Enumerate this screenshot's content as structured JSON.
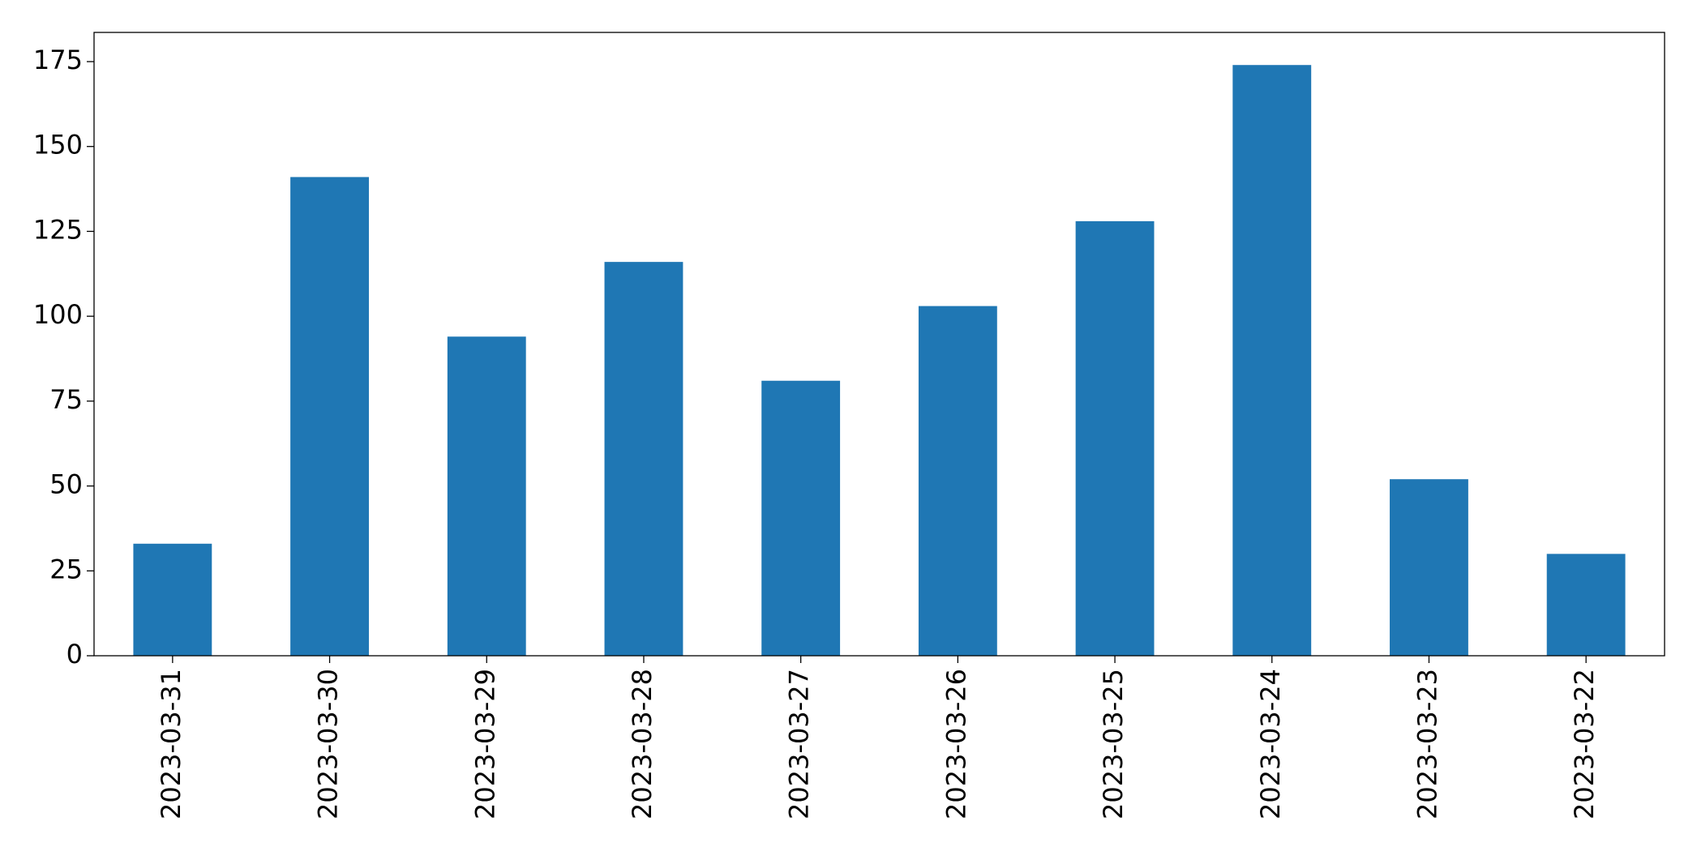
{
  "chart_data": {
    "type": "bar",
    "categories": [
      "2023-03-31",
      "2023-03-30",
      "2023-03-29",
      "2023-03-28",
      "2023-03-27",
      "2023-03-26",
      "2023-03-25",
      "2023-03-24",
      "2023-03-23",
      "2023-03-22"
    ],
    "values": [
      33,
      141,
      94,
      116,
      81,
      103,
      128,
      174,
      52,
      30
    ],
    "color": "#1f77b4",
    "ylim": [
      0,
      183.6
    ],
    "yticks": [
      0,
      25,
      50,
      75,
      100,
      125,
      150,
      175
    ],
    "grid": false
  }
}
